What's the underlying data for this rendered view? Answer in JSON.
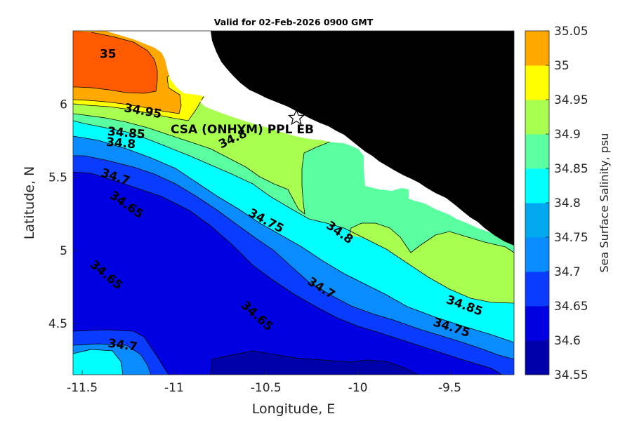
{
  "title": "Valid for 02-Feb-2026 0900 GMT",
  "xlabel": "Longitude, E",
  "ylabel": "Latitude, N",
  "colorbar_label": "Sea Surface Salinity, psu",
  "station_label": "CSA (ONHYM) PPL EB",
  "colors": {
    "land": "#000000",
    "mask": "#ffffff",
    "levels": [
      "#0000a8",
      "#0000e0",
      "#0a3cff",
      "#0a8cff",
      "#00a8f0",
      "#00ffff",
      "#5affa0",
      "#a8ff50",
      "#ffff00",
      "#ffa800",
      "#ff5a00"
    ]
  },
  "chart_data": {
    "type": "contour-map",
    "title": "Valid for 02-Feb-2026 0900 GMT",
    "xlabel": "Longitude, E",
    "ylabel": "Latitude, N",
    "xlim": [
      -11.55,
      -9.15
    ],
    "ylim": [
      4.15,
      6.5
    ],
    "xticks": [
      -11.5,
      -11,
      -10.5,
      -10,
      -9.5
    ],
    "xtick_labels": [
      "-11.5",
      "-11",
      "-10.5",
      "-10",
      "-9.5"
    ],
    "yticks": [
      4.5,
      5,
      5.5,
      6
    ],
    "ytick_labels": [
      "4.5",
      "5",
      "5.5",
      "6"
    ],
    "colorbar_ticks": [
      "34.55",
      "34.6",
      "34.65",
      "34.7",
      "34.75",
      "34.8",
      "34.85",
      "34.9",
      "34.95",
      "35",
      "35.05"
    ],
    "levels": [
      34.55,
      34.6,
      34.65,
      34.7,
      34.75,
      34.8,
      34.85,
      34.9,
      34.95,
      35,
      35.05
    ],
    "contour_labels": [
      {
        "text": "35",
        "lon": -11.36,
        "lat": 6.34,
        "angle": 0
      },
      {
        "text": "34.95",
        "lon": -11.17,
        "lat": 5.95,
        "angle": 10
      },
      {
        "text": "34.85",
        "lon": -11.26,
        "lat": 5.8,
        "angle": 5
      },
      {
        "text": "34.8",
        "lon": -11.29,
        "lat": 5.73,
        "angle": 5
      },
      {
        "text": "34.8",
        "lon": -10.68,
        "lat": 5.76,
        "angle": -25
      },
      {
        "text": "34.7",
        "lon": -11.32,
        "lat": 5.5,
        "angle": 18
      },
      {
        "text": "34.65",
        "lon": -11.26,
        "lat": 5.31,
        "angle": 35
      },
      {
        "text": "34.75",
        "lon": -10.5,
        "lat": 5.2,
        "angle": 28
      },
      {
        "text": "34.8",
        "lon": -10.1,
        "lat": 5.12,
        "angle": 35
      },
      {
        "text": "34.65",
        "lon": -11.37,
        "lat": 4.83,
        "angle": 40
      },
      {
        "text": "34.7",
        "lon": -10.2,
        "lat": 4.74,
        "angle": 32
      },
      {
        "text": "34.65",
        "lon": -10.55,
        "lat": 4.55,
        "angle": 42
      },
      {
        "text": "34.85",
        "lon": -9.42,
        "lat": 4.62,
        "angle": 20
      },
      {
        "text": "34.75",
        "lon": -9.49,
        "lat": 4.47,
        "angle": 18
      },
      {
        "text": "34.7",
        "lon": -11.28,
        "lat": 4.35,
        "angle": 8
      }
    ],
    "marker": {
      "name": "CSA (ONHYM) PPL EB",
      "lon": -10.3,
      "lat": 5.93,
      "symbol": "star"
    }
  }
}
